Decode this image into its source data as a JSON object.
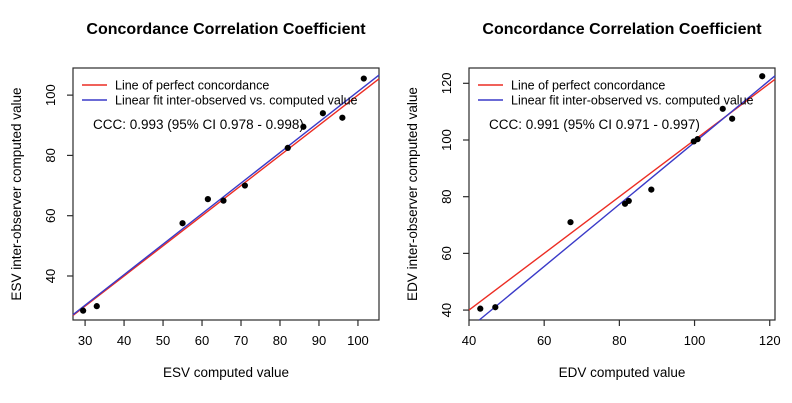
{
  "colors": {
    "perfect_line": "#ec2d24",
    "fit_line": "#3a3ac8",
    "points": "#000000",
    "frame": "#2b2b2b"
  },
  "chart_data": [
    {
      "type": "scatter",
      "title": "Concordance Correlation Coefficient",
      "xlabel": "ESV computed value",
      "ylabel": "ESV inter-observer computed value",
      "ccc_annotation": "CCC: 0.993 (95% CI 0.978 - 0.998)",
      "xlim": [
        26.9,
        105.4
      ],
      "ylim": [
        25.4,
        109.0
      ],
      "xticks": [
        30,
        40,
        50,
        60,
        70,
        80,
        90,
        100
      ],
      "yticks": [
        40,
        60,
        80,
        100
      ],
      "grid": false,
      "legend_position": "top-left",
      "points": [
        [
          29.5,
          28.5
        ],
        [
          33,
          30
        ],
        [
          55,
          57.5
        ],
        [
          61.5,
          65.5
        ],
        [
          65.5,
          65
        ],
        [
          71,
          70
        ],
        [
          82,
          82.5
        ],
        [
          86,
          89.5
        ],
        [
          91,
          94
        ],
        [
          96,
          92.5
        ],
        [
          101.5,
          105.5
        ]
      ],
      "lines": [
        {
          "name": "perfect-concordance",
          "label": "Line of perfect concordance",
          "color": "perfect_line",
          "slope": 1,
          "intercept": 0
        },
        {
          "name": "linear-fit",
          "label": "Linear fit inter-observed vs. computed value",
          "color": "fit_line",
          "slope": 1.013,
          "intercept": -0.1
        }
      ]
    },
    {
      "type": "scatter",
      "title": "Concordance Correlation Coefficient",
      "xlabel": "EDV computed value",
      "ylabel": "EDV inter-observer computed value",
      "ccc_annotation": "CCC: 0.991 (95% CI 0.971 - 0.997)",
      "xlim": [
        40,
        121.4
      ],
      "ylim": [
        36.5,
        125.4
      ],
      "xticks": [
        40,
        60,
        80,
        100,
        120
      ],
      "yticks": [
        40,
        60,
        80,
        100,
        120
      ],
      "grid": false,
      "legend_position": "top-left",
      "points": [
        [
          43,
          40.5
        ],
        [
          47,
          41
        ],
        [
          67,
          71
        ],
        [
          81.5,
          77.5
        ],
        [
          82.5,
          78.5
        ],
        [
          88.5,
          82.5
        ],
        [
          99.8,
          99.5
        ],
        [
          100.8,
          100.3
        ],
        [
          107.5,
          111
        ],
        [
          110,
          107.5
        ],
        [
          118,
          122.5
        ]
      ],
      "lines": [
        {
          "name": "perfect-concordance",
          "label": "Line of perfect concordance",
          "color": "perfect_line",
          "slope": 1,
          "intercept": 0
        },
        {
          "name": "linear-fit",
          "label": "Linear fit inter-observed vs. computed value",
          "color": "fit_line",
          "slope": 1.095,
          "intercept": -10.3
        }
      ]
    }
  ]
}
